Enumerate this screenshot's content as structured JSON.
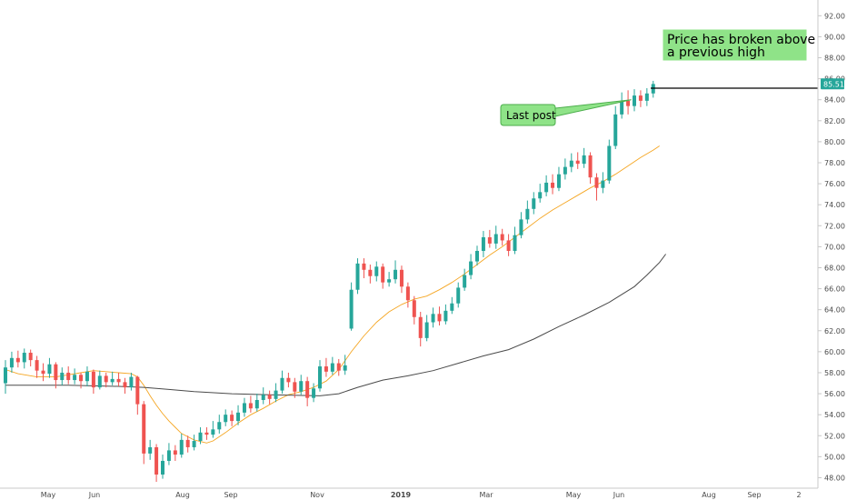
{
  "chart_data": {
    "type": "candlestick",
    "y_axis": {
      "range": [
        47,
        93.5
      ],
      "ticks": [
        "92.00",
        "90.00",
        "88.00",
        "86.00",
        "84.00",
        "82.00",
        "80.00",
        "78.00",
        "76.00",
        "74.00",
        "72.00",
        "70.00",
        "68.00",
        "66.00",
        "64.00",
        "62.00",
        "60.00",
        "58.00",
        "56.00",
        "54.00",
        "52.00",
        "50.00",
        "48.00"
      ]
    },
    "x_axis": {
      "ticks": [
        "May",
        "Jun",
        "Aug",
        "Sep",
        "Nov",
        "2019",
        "Mar",
        "May",
        "Jun",
        "Aug",
        "Sep",
        "2"
      ],
      "bold_tick": "2019"
    },
    "last_price": "85.51",
    "colors": {
      "up": "#26a69a",
      "down": "#ef5350",
      "ma_fast": "#f5a623",
      "ma_slow": "#4a4a4a",
      "annotation_fill": "#8fe388",
      "annotation_stroke": "#4cae4c",
      "price_label": "#26a69a"
    },
    "annotations": {
      "last_post": "Last post",
      "breakout_line1": "Price has broken above",
      "breakout_line2": "a previous high"
    },
    "resistance_level": 85.1,
    "series": [
      {
        "name": "",
        "kind": "sma-fast",
        "points": [
          [
            0,
            58.3
          ],
          [
            2,
            57.9
          ],
          [
            5,
            57.6
          ],
          [
            8,
            57.6
          ],
          [
            10,
            57.8
          ],
          [
            12,
            58.0
          ],
          [
            14,
            58.2
          ],
          [
            16,
            58.1
          ],
          [
            18,
            58.0
          ],
          [
            20,
            57.9
          ],
          [
            21,
            57.6
          ],
          [
            22,
            56.8
          ],
          [
            23,
            55.8
          ],
          [
            24,
            54.9
          ],
          [
            25,
            54.1
          ],
          [
            26,
            53.4
          ],
          [
            27,
            52.8
          ],
          [
            28,
            52.2
          ],
          [
            30,
            51.6
          ],
          [
            32,
            51.3
          ],
          [
            33,
            51.5
          ],
          [
            35,
            52.3
          ],
          [
            37,
            53.2
          ],
          [
            39,
            54.0
          ],
          [
            41,
            54.6
          ],
          [
            43,
            55.3
          ],
          [
            45,
            55.9
          ],
          [
            47,
            56.2
          ],
          [
            49,
            56.6
          ],
          [
            51,
            57.2
          ],
          [
            53,
            58.3
          ],
          [
            55,
            60.0
          ],
          [
            57,
            61.5
          ],
          [
            59,
            62.8
          ],
          [
            61,
            63.8
          ],
          [
            63,
            64.5
          ],
          [
            65,
            65.0
          ],
          [
            67,
            65.3
          ],
          [
            69,
            65.9
          ],
          [
            71,
            66.6
          ],
          [
            73,
            67.4
          ],
          [
            75,
            68.3
          ],
          [
            77,
            69.2
          ],
          [
            79,
            70.0
          ],
          [
            81,
            70.9
          ],
          [
            83,
            71.8
          ],
          [
            85,
            72.7
          ],
          [
            87,
            73.5
          ],
          [
            89,
            74.2
          ],
          [
            91,
            74.9
          ],
          [
            93,
            75.6
          ],
          [
            95,
            76.2
          ],
          [
            97,
            76.9
          ],
          [
            99,
            77.7
          ],
          [
            101,
            78.5
          ],
          [
            103,
            79.2
          ],
          [
            104,
            79.6
          ]
        ]
      },
      {
        "name": "",
        "kind": "sma-slow",
        "points": [
          [
            0,
            56.8
          ],
          [
            10,
            56.8
          ],
          [
            18,
            56.7
          ],
          [
            22,
            56.6
          ],
          [
            26,
            56.4
          ],
          [
            30,
            56.2
          ],
          [
            36,
            56.0
          ],
          [
            42,
            55.9
          ],
          [
            50,
            55.8
          ],
          [
            53,
            56.0
          ],
          [
            56,
            56.6
          ],
          [
            60,
            57.3
          ],
          [
            64,
            57.7
          ],
          [
            68,
            58.2
          ],
          [
            72,
            58.9
          ],
          [
            76,
            59.6
          ],
          [
            80,
            60.2
          ],
          [
            84,
            61.2
          ],
          [
            88,
            62.4
          ],
          [
            92,
            63.5
          ],
          [
            96,
            64.7
          ],
          [
            100,
            66.2
          ],
          [
            102,
            67.3
          ],
          [
            104,
            68.5
          ],
          [
            105,
            69.3
          ]
        ]
      }
    ],
    "candles": [
      [
        0,
        57.0,
        58.5,
        59.2,
        56.0
      ],
      [
        1,
        58.5,
        59.4,
        60.0,
        58.0
      ],
      [
        2,
        59.4,
        59.0,
        60.1,
        58.5
      ],
      [
        3,
        59.0,
        59.9,
        60.3,
        58.4
      ],
      [
        4,
        59.9,
        59.2,
        60.2,
        58.6
      ],
      [
        5,
        59.2,
        58.2,
        59.6,
        57.5
      ],
      [
        6,
        58.2,
        57.9,
        58.9,
        57.2
      ],
      [
        7,
        57.9,
        58.8,
        59.4,
        57.5
      ],
      [
        8,
        58.8,
        57.3,
        59.0,
        56.5
      ],
      [
        9,
        57.3,
        58.0,
        58.5,
        56.8
      ],
      [
        10,
        58.0,
        57.3,
        58.6,
        56.9
      ],
      [
        11,
        57.3,
        57.8,
        58.4,
        56.9
      ],
      [
        12,
        57.8,
        57.2,
        58.0,
        56.5
      ],
      [
        13,
        57.2,
        58.1,
        58.6,
        56.7
      ],
      [
        14,
        58.1,
        56.6,
        58.3,
        56.0
      ],
      [
        15,
        56.6,
        57.7,
        58.2,
        56.4
      ],
      [
        16,
        57.7,
        57.1,
        58.0,
        56.6
      ],
      [
        17,
        57.1,
        57.4,
        58.1,
        56.8
      ],
      [
        18,
        57.4,
        57.1,
        58.0,
        56.7
      ],
      [
        19,
        57.1,
        56.6,
        57.5,
        56.0
      ],
      [
        20,
        56.6,
        57.6,
        58.0,
        56.3
      ],
      [
        21,
        57.6,
        55.0,
        57.7,
        54.0
      ],
      [
        22,
        55.0,
        50.3,
        55.3,
        49.3
      ],
      [
        23,
        50.3,
        50.9,
        51.6,
        49.7
      ],
      [
        24,
        50.9,
        48.3,
        51.2,
        47.6
      ],
      [
        25,
        48.3,
        49.6,
        50.2,
        47.9
      ],
      [
        26,
        49.6,
        50.6,
        51.3,
        49.2
      ],
      [
        27,
        50.6,
        50.2,
        51.1,
        49.6
      ],
      [
        28,
        50.2,
        51.6,
        52.2,
        49.9
      ],
      [
        29,
        51.6,
        50.9,
        52.0,
        50.4
      ],
      [
        30,
        50.9,
        51.5,
        52.1,
        50.6
      ],
      [
        31,
        51.5,
        52.3,
        52.8,
        51.2
      ],
      [
        32,
        52.3,
        52.1,
        52.8,
        51.6
      ],
      [
        33,
        52.1,
        52.6,
        53.4,
        51.8
      ],
      [
        34,
        52.6,
        53.3,
        54.0,
        52.2
      ],
      [
        35,
        53.3,
        54.0,
        54.5,
        52.9
      ],
      [
        36,
        54.0,
        53.4,
        54.4,
        52.9
      ],
      [
        37,
        53.4,
        54.2,
        54.9,
        53.0
      ],
      [
        38,
        54.2,
        55.1,
        55.6,
        53.8
      ],
      [
        39,
        55.1,
        54.6,
        55.8,
        54.2
      ],
      [
        40,
        54.6,
        55.4,
        56.0,
        54.3
      ],
      [
        41,
        55.4,
        55.9,
        56.6,
        55.0
      ],
      [
        42,
        55.9,
        55.5,
        56.3,
        55.0
      ],
      [
        43,
        55.5,
        56.3,
        57.0,
        55.2
      ],
      [
        44,
        56.3,
        57.5,
        58.2,
        56.0
      ],
      [
        45,
        57.5,
        57.1,
        58.0,
        56.6
      ],
      [
        46,
        57.1,
        56.2,
        57.5,
        55.6
      ],
      [
        47,
        56.2,
        57.2,
        57.8,
        55.9
      ],
      [
        48,
        57.2,
        55.6,
        57.6,
        54.8
      ],
      [
        49,
        55.6,
        56.5,
        57.0,
        55.2
      ],
      [
        50,
        56.5,
        58.6,
        59.2,
        56.2
      ],
      [
        51,
        58.6,
        58.1,
        59.4,
        57.6
      ],
      [
        52,
        58.1,
        58.9,
        59.5,
        57.8
      ],
      [
        53,
        58.9,
        58.2,
        59.3,
        57.7
      ],
      [
        54,
        58.2,
        58.7,
        59.7,
        57.8
      ],
      [
        55,
        62.2,
        65.9,
        66.6,
        62.0
      ],
      [
        56,
        65.9,
        68.4,
        68.9,
        65.5
      ],
      [
        57,
        68.4,
        67.8,
        68.9,
        67.0
      ],
      [
        58,
        67.8,
        67.2,
        68.3,
        66.5
      ],
      [
        59,
        67.2,
        68.1,
        68.6,
        66.7
      ],
      [
        60,
        68.1,
        66.6,
        68.4,
        66.0
      ],
      [
        61,
        66.6,
        66.9,
        67.6,
        66.2
      ],
      [
        62,
        66.9,
        67.8,
        68.7,
        66.5
      ],
      [
        63,
        67.8,
        66.2,
        68.2,
        65.6
      ],
      [
        64,
        66.2,
        64.9,
        66.6,
        64.2
      ],
      [
        65,
        64.9,
        63.3,
        65.3,
        62.6
      ],
      [
        66,
        63.3,
        61.3,
        63.8,
        60.5
      ],
      [
        67,
        61.3,
        62.8,
        63.5,
        61.0
      ],
      [
        68,
        62.8,
        63.6,
        64.2,
        62.3
      ],
      [
        69,
        63.6,
        62.9,
        64.3,
        62.5
      ],
      [
        70,
        62.9,
        63.9,
        64.5,
        62.6
      ],
      [
        71,
        63.9,
        64.6,
        65.2,
        63.6
      ],
      [
        72,
        64.6,
        66.1,
        66.6,
        64.2
      ],
      [
        73,
        66.1,
        67.3,
        67.9,
        65.8
      ],
      [
        74,
        67.3,
        68.6,
        69.3,
        66.9
      ],
      [
        75,
        68.6,
        69.6,
        70.1,
        68.2
      ],
      [
        76,
        69.6,
        70.9,
        71.5,
        69.0
      ],
      [
        77,
        70.9,
        70.3,
        71.6,
        69.9
      ],
      [
        78,
        70.3,
        71.2,
        72.0,
        69.8
      ],
      [
        79,
        71.2,
        70.6,
        71.7,
        70.1
      ],
      [
        80,
        70.6,
        69.6,
        71.2,
        69.1
      ],
      [
        81,
        69.6,
        71.1,
        71.9,
        69.3
      ],
      [
        82,
        71.1,
        72.6,
        73.3,
        70.8
      ],
      [
        83,
        72.6,
        73.6,
        74.4,
        72.2
      ],
      [
        84,
        73.6,
        74.6,
        75.2,
        73.1
      ],
      [
        85,
        74.6,
        75.2,
        76.0,
        74.2
      ],
      [
        86,
        75.2,
        76.1,
        76.8,
        74.8
      ],
      [
        87,
        76.1,
        75.6,
        76.9,
        75.0
      ],
      [
        88,
        75.6,
        76.9,
        77.6,
        75.3
      ],
      [
        89,
        76.9,
        77.6,
        78.4,
        76.4
      ],
      [
        90,
        77.6,
        78.2,
        78.9,
        77.1
      ],
      [
        91,
        78.2,
        77.9,
        79.0,
        77.4
      ],
      [
        92,
        77.9,
        78.7,
        79.4,
        77.5
      ],
      [
        93,
        78.7,
        76.6,
        79.0,
        76.0
      ],
      [
        94,
        76.6,
        75.6,
        77.0,
        74.4
      ],
      [
        95,
        75.6,
        76.3,
        77.1,
        75.1
      ],
      [
        96,
        76.3,
        79.6,
        80.2,
        76.0
      ],
      [
        97,
        79.6,
        82.6,
        83.4,
        79.3
      ],
      [
        98,
        82.6,
        83.9,
        84.7,
        82.2
      ],
      [
        99,
        83.9,
        83.4,
        84.9,
        82.6
      ],
      [
        100,
        83.4,
        84.4,
        85.0,
        82.9
      ],
      [
        101,
        84.4,
        83.9,
        84.9,
        83.3
      ],
      [
        102,
        83.9,
        84.6,
        85.1,
        83.4
      ],
      [
        103,
        84.6,
        85.5,
        85.8,
        84.2
      ]
    ]
  }
}
